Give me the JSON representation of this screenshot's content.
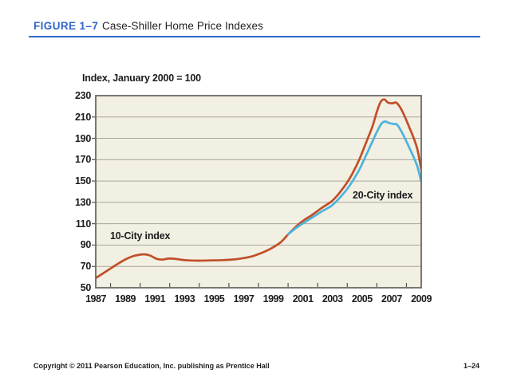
{
  "header": {
    "figure_label": "FIGURE 1–7",
    "title": "Case-Shiller Home Price Indexes"
  },
  "footer": {
    "copyright": "Copyright © 2011 Pearson Education, Inc. publishing as Prentice Hall",
    "page_number": "1–24"
  },
  "colors": {
    "accent_blue": "#3366cc",
    "ten_city_line": "#c04f27",
    "twenty_city_line": "#4bb4dc",
    "plot_background": "#f2efe3",
    "grid_line": "#a9a69b",
    "plot_frame": "#6b6963",
    "tick": "#55534c"
  },
  "chart_data": {
    "type": "line",
    "title": "Case-Shiller Home Price Indexes",
    "axis_note": "Index, January 2000 = 100",
    "xlim": [
      1987,
      2009
    ],
    "ylim": [
      50,
      230
    ],
    "grid": "horizontal",
    "y_tick_labels": [
      230,
      210,
      190,
      170,
      150,
      130,
      110,
      90,
      70,
      50
    ],
    "y_grid_values": [
      70,
      90,
      110,
      130,
      150,
      170,
      190,
      210
    ],
    "x_tick_labels": [
      "1987",
      "1989",
      "1991",
      "1993",
      "1995",
      "1997",
      "1999",
      "2001",
      "2003",
      "2005",
      "2007",
      "2009"
    ],
    "x_tick_values": [
      1987,
      1989,
      1991,
      1993,
      1995,
      1997,
      1999,
      2001,
      2003,
      2005,
      2007,
      2009
    ],
    "x_minor_ticks": [
      1988,
      1990,
      1992,
      1994,
      1996,
      1998,
      2000,
      2002,
      2004,
      2006,
      2008
    ],
    "series": [
      {
        "name": "10-City index",
        "color": "#c04f27",
        "points": [
          [
            1987.0,
            59
          ],
          [
            1987.5,
            63.5
          ],
          [
            1988.0,
            68
          ],
          [
            1988.5,
            72.5
          ],
          [
            1989.0,
            76.5
          ],
          [
            1989.5,
            79.5
          ],
          [
            1990.0,
            81
          ],
          [
            1990.35,
            81.3
          ],
          [
            1990.7,
            80
          ],
          [
            1991.1,
            77.2
          ],
          [
            1991.5,
            76.4
          ],
          [
            1991.9,
            77.3
          ],
          [
            1992.3,
            77.2
          ],
          [
            1992.8,
            76.2
          ],
          [
            1993.3,
            75.6
          ],
          [
            1994.0,
            75.4
          ],
          [
            1994.8,
            75.6
          ],
          [
            1995.6,
            75.9
          ],
          [
            1996.4,
            76.6
          ],
          [
            1997.0,
            77.8
          ],
          [
            1997.6,
            79.6
          ],
          [
            1998.2,
            82.6
          ],
          [
            1998.8,
            86.4
          ],
          [
            1999.4,
            91.5
          ],
          [
            1999.7,
            95.3
          ],
          [
            2000.0,
            100
          ],
          [
            2000.4,
            105.5
          ],
          [
            2000.8,
            110.5
          ],
          [
            2001.2,
            114.5
          ],
          [
            2001.6,
            118
          ],
          [
            2002.0,
            122
          ],
          [
            2002.4,
            126
          ],
          [
            2002.9,
            130.5
          ],
          [
            2003.3,
            136
          ],
          [
            2003.7,
            143
          ],
          [
            2004.1,
            151
          ],
          [
            2004.5,
            161
          ],
          [
            2004.9,
            173
          ],
          [
            2005.3,
            187
          ],
          [
            2005.7,
            201
          ],
          [
            2006.0,
            215
          ],
          [
            2006.25,
            224
          ],
          [
            2006.5,
            226.5
          ],
          [
            2006.75,
            223.5
          ],
          [
            2007.05,
            222.8
          ],
          [
            2007.3,
            223.5
          ],
          [
            2007.6,
            218.5
          ],
          [
            2007.9,
            210
          ],
          [
            2008.2,
            200
          ],
          [
            2008.5,
            190
          ],
          [
            2008.75,
            179
          ],
          [
            2009.0,
            161
          ]
        ]
      },
      {
        "name": "20-City index",
        "color": "#4bb4dc",
        "points": [
          [
            2000.0,
            100
          ],
          [
            2000.4,
            104.5
          ],
          [
            2000.8,
            108.5
          ],
          [
            2001.2,
            112
          ],
          [
            2001.6,
            115.5
          ],
          [
            2002.0,
            119
          ],
          [
            2002.4,
            122.5
          ],
          [
            2002.9,
            126.5
          ],
          [
            2003.3,
            131.5
          ],
          [
            2003.7,
            137.5
          ],
          [
            2004.1,
            144.5
          ],
          [
            2004.5,
            153
          ],
          [
            2004.9,
            163
          ],
          [
            2005.3,
            175
          ],
          [
            2005.7,
            187
          ],
          [
            2006.0,
            196
          ],
          [
            2006.3,
            203.5
          ],
          [
            2006.55,
            205.8
          ],
          [
            2006.8,
            204.5
          ],
          [
            2007.1,
            203.5
          ],
          [
            2007.35,
            203
          ],
          [
            2007.6,
            198
          ],
          [
            2007.9,
            190
          ],
          [
            2008.2,
            181
          ],
          [
            2008.5,
            172
          ],
          [
            2008.75,
            163
          ],
          [
            2009.0,
            149.5
          ]
        ]
      }
    ]
  }
}
